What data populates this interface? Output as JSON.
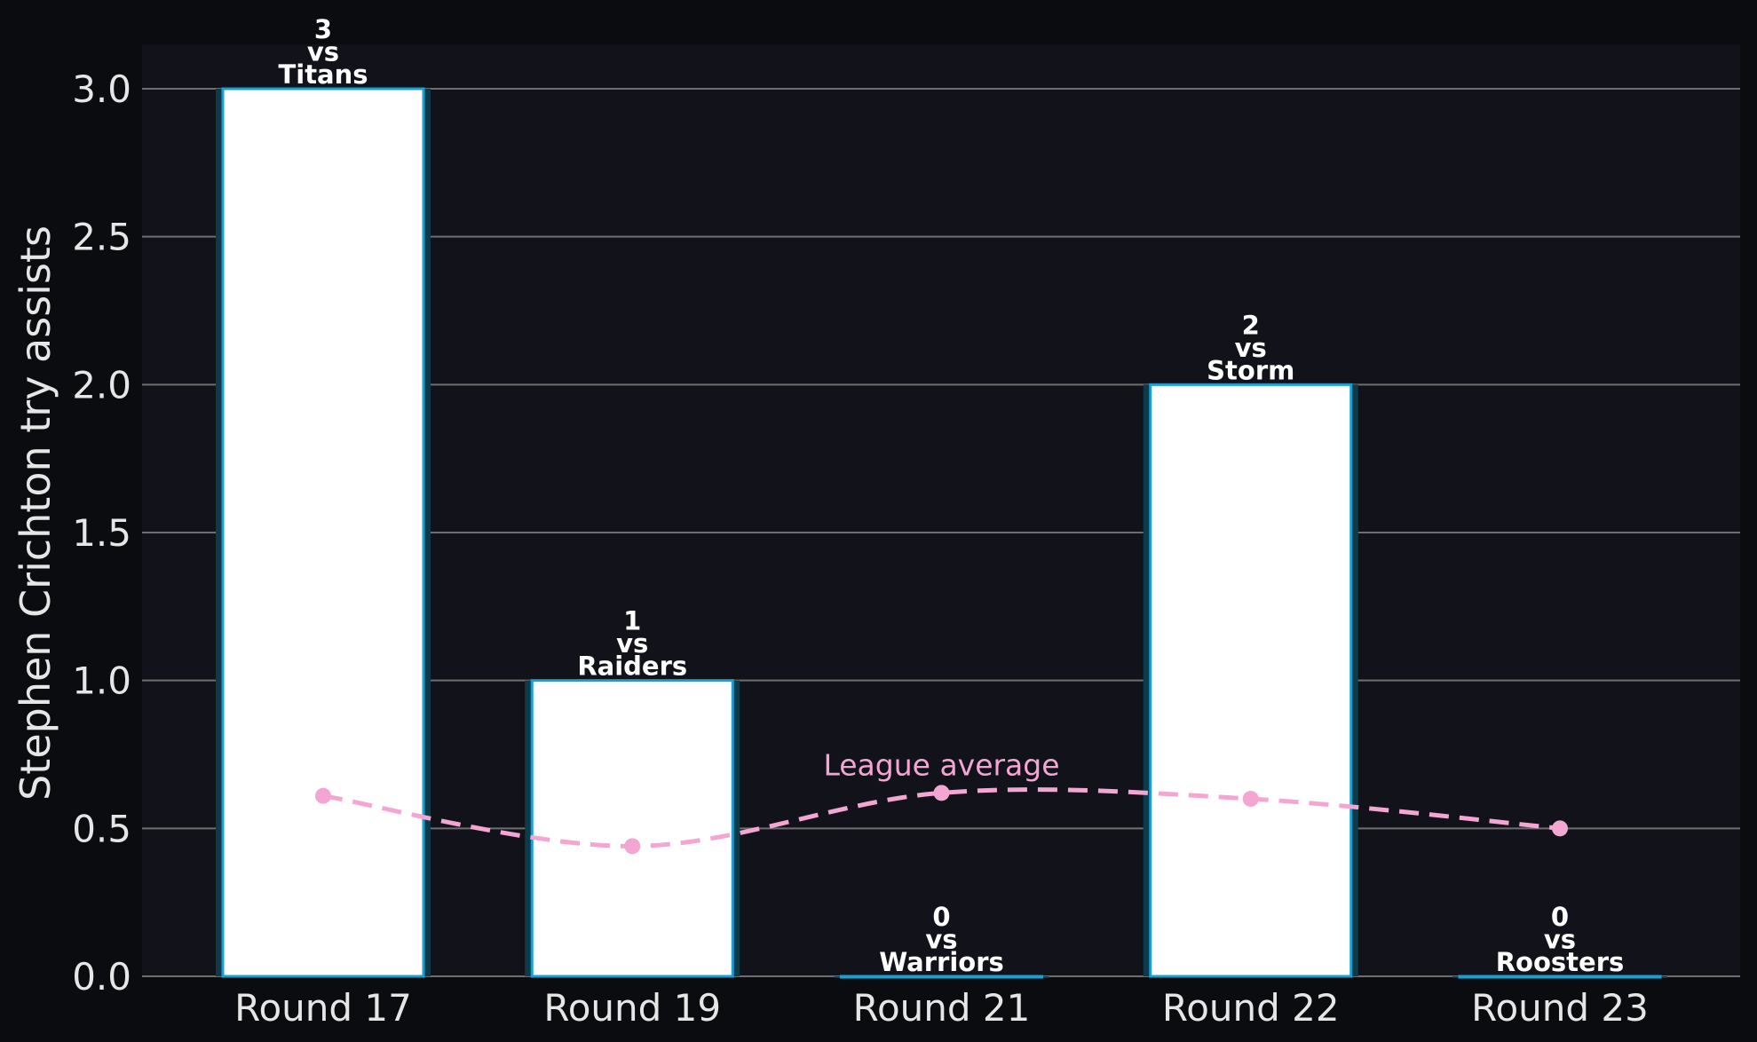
{
  "chart_data": {
    "type": "bar",
    "categories": [
      "Round 17",
      "Round 19",
      "Round 21",
      "Round 22",
      "Round 23"
    ],
    "series": [
      {
        "values": [
          3,
          1,
          0,
          2,
          0
        ]
      }
    ],
    "opponents": [
      "Titans",
      "Raiders",
      "Warriors",
      "Storm",
      "Roosters"
    ],
    "versus_word": "vs",
    "league_average": {
      "label": "League average",
      "values": [
        0.61,
        0.44,
        0.62,
        0.6,
        0.5
      ]
    },
    "xlabel": "",
    "ylabel": "Stephen Crichton try assists",
    "ylim": [
      0,
      3.15
    ],
    "yticks": [
      "0.0",
      "0.5",
      "1.0",
      "1.5",
      "2.0",
      "2.5",
      "3.0"
    ],
    "grid": "horizontal",
    "colors": {
      "page_background": "#0b0c10",
      "plot_background": "#12131a",
      "bar_fill": "#ffffff",
      "bar_edge": "#1aa0d0",
      "bar_glow": "#0e3a4a",
      "average_line": "#f4a6d3",
      "grid": "#6e6e6e",
      "text": "#e6e6e6"
    }
  }
}
